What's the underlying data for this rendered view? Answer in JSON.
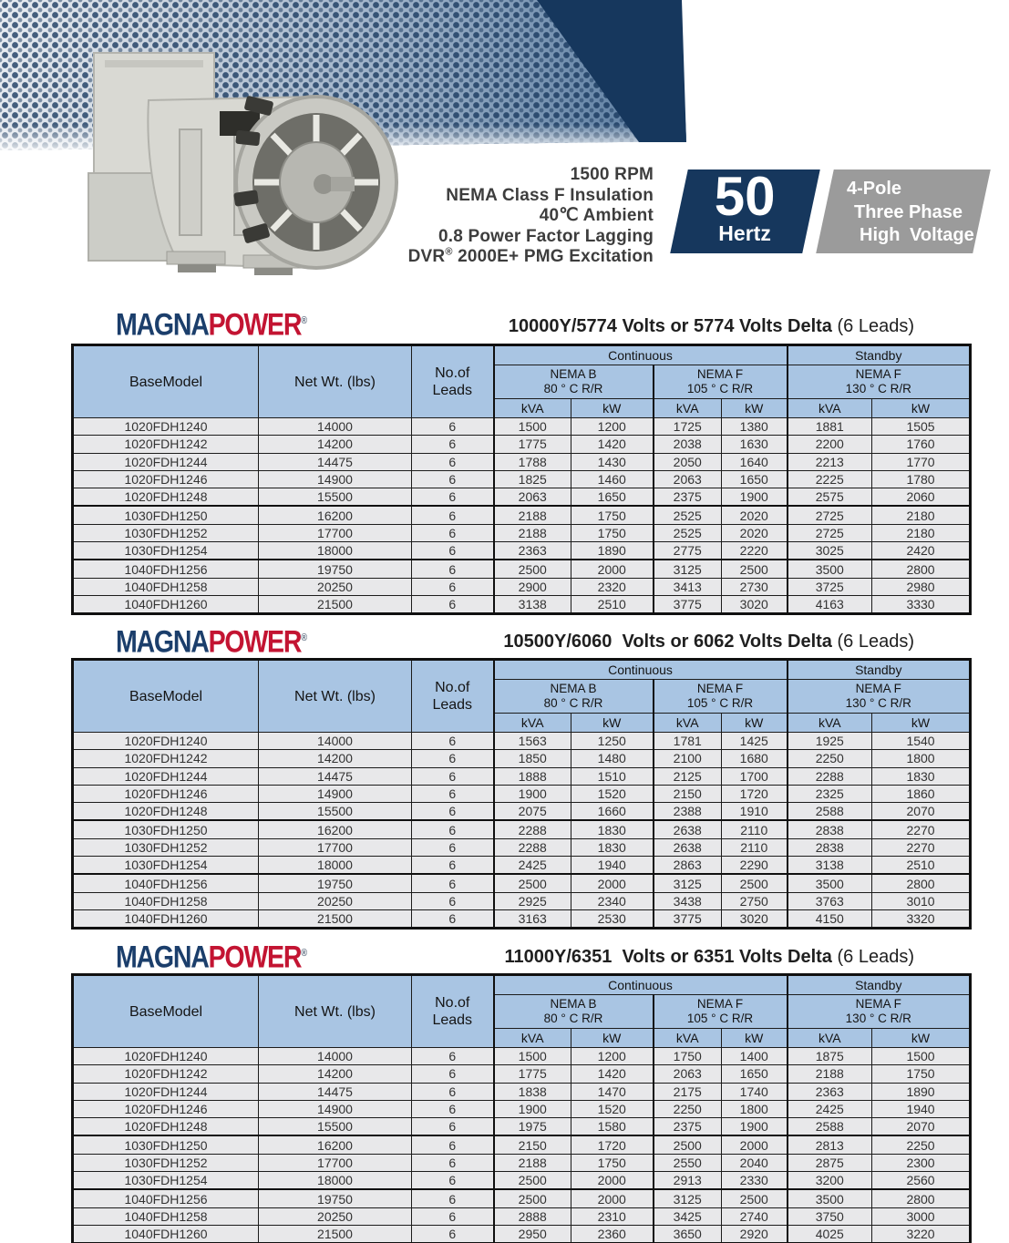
{
  "banner": {
    "spec_lines": [
      "1500 RPM",
      "NEMA Class F Insulation",
      "40℃ Ambient",
      "0.8 Power Factor Lagging"
    ],
    "spec_dvr": {
      "prefix": "DVR",
      "reg": "®",
      "suffix": " 2000E+ PMG Excitation"
    },
    "hertz_badge": {
      "value": "50",
      "label": "Hertz"
    },
    "pole_badge": {
      "line1": "4-Pole",
      "line2": "Three Phase",
      "line3": "High Voltage"
    }
  },
  "logo": {
    "part1": "MAGNA",
    "part2": "POWER",
    "reg": "®"
  },
  "table_header": {
    "col_model": "BaseModel",
    "col_weight": "Net Wt. (lbs)",
    "col_leads_line1": "No.of",
    "col_leads_line2": "Leads",
    "group_continuous": "Continuous",
    "group_standby": "Standby",
    "nema_b_line1": "NEMA B",
    "nema_b_line2": "80 ° C R/R",
    "nema_f105_line1": "NEMA F",
    "nema_f105_line2": "105 ° C R/R",
    "nema_f130_line1": "NEMA F",
    "nema_f130_line2": "130 ° C R/R",
    "unit_kva": "kVA",
    "unit_kw": "kW"
  },
  "tables": [
    {
      "title_bold": "10000Y/5774 Volts or 5774 Volts Delta",
      "title_normal": " (6 Leads)",
      "group_starts": [
        5,
        8
      ],
      "rows": [
        [
          "1020FDH1240",
          "14000",
          "6",
          "1500",
          "1200",
          "1725",
          "1380",
          "1881",
          "1505"
        ],
        [
          "1020FDH1242",
          "14200",
          "6",
          "1775",
          "1420",
          "2038",
          "1630",
          "2200",
          "1760"
        ],
        [
          "1020FDH1244",
          "14475",
          "6",
          "1788",
          "1430",
          "2050",
          "1640",
          "2213",
          "1770"
        ],
        [
          "1020FDH1246",
          "14900",
          "6",
          "1825",
          "1460",
          "2063",
          "1650",
          "2225",
          "1780"
        ],
        [
          "1020FDH1248",
          "15500",
          "6",
          "2063",
          "1650",
          "2375",
          "1900",
          "2575",
          "2060"
        ],
        [
          "1030FDH1250",
          "16200",
          "6",
          "2188",
          "1750",
          "2525",
          "2020",
          "2725",
          "2180"
        ],
        [
          "1030FDH1252",
          "17700",
          "6",
          "2188",
          "1750",
          "2525",
          "2020",
          "2725",
          "2180"
        ],
        [
          "1030FDH1254",
          "18000",
          "6",
          "2363",
          "1890",
          "2775",
          "2220",
          "3025",
          "2420"
        ],
        [
          "1040FDH1256",
          "19750",
          "6",
          "2500",
          "2000",
          "3125",
          "2500",
          "3500",
          "2800"
        ],
        [
          "1040FDH1258",
          "20250",
          "6",
          "2900",
          "2320",
          "3413",
          "2730",
          "3725",
          "2980"
        ],
        [
          "1040FDH1260",
          "21500",
          "6",
          "3138",
          "2510",
          "3775",
          "3020",
          "4163",
          "3330"
        ]
      ]
    },
    {
      "title_bold": "10500Y/6060  Volts or 6062 Volts Delta",
      "title_normal": " (6 Leads)",
      "group_starts": [
        5,
        8
      ],
      "rows": [
        [
          "1020FDH1240",
          "14000",
          "6",
          "1563",
          "1250",
          "1781",
          "1425",
          "1925",
          "1540"
        ],
        [
          "1020FDH1242",
          "14200",
          "6",
          "1850",
          "1480",
          "2100",
          "1680",
          "2250",
          "1800"
        ],
        [
          "1020FDH1244",
          "14475",
          "6",
          "1888",
          "1510",
          "2125",
          "1700",
          "2288",
          "1830"
        ],
        [
          "1020FDH1246",
          "14900",
          "6",
          "1900",
          "1520",
          "2150",
          "1720",
          "2325",
          "1860"
        ],
        [
          "1020FDH1248",
          "15500",
          "6",
          "2075",
          "1660",
          "2388",
          "1910",
          "2588",
          "2070"
        ],
        [
          "1030FDH1250",
          "16200",
          "6",
          "2288",
          "1830",
          "2638",
          "2110",
          "2838",
          "2270"
        ],
        [
          "1030FDH1252",
          "17700",
          "6",
          "2288",
          "1830",
          "2638",
          "2110",
          "2838",
          "2270"
        ],
        [
          "1030FDH1254",
          "18000",
          "6",
          "2425",
          "1940",
          "2863",
          "2290",
          "3138",
          "2510"
        ],
        [
          "1040FDH1256",
          "19750",
          "6",
          "2500",
          "2000",
          "3125",
          "2500",
          "3500",
          "2800"
        ],
        [
          "1040FDH1258",
          "20250",
          "6",
          "2925",
          "2340",
          "3438",
          "2750",
          "3763",
          "3010"
        ],
        [
          "1040FDH1260",
          "21500",
          "6",
          "3163",
          "2530",
          "3775",
          "3020",
          "4150",
          "3320"
        ]
      ]
    },
    {
      "title_bold": "11000Y/6351  Volts or 6351 Volts Delta",
      "title_normal": " (6 Leads)",
      "group_starts": [
        5,
        8
      ],
      "rows": [
        [
          "1020FDH1240",
          "14000",
          "6",
          "1500",
          "1200",
          "1750",
          "1400",
          "1875",
          "1500"
        ],
        [
          "1020FDH1242",
          "14200",
          "6",
          "1775",
          "1420",
          "2063",
          "1650",
          "2188",
          "1750"
        ],
        [
          "1020FDH1244",
          "14475",
          "6",
          "1838",
          "1470",
          "2175",
          "1740",
          "2363",
          "1890"
        ],
        [
          "1020FDH1246",
          "14900",
          "6",
          "1900",
          "1520",
          "2250",
          "1800",
          "2425",
          "1940"
        ],
        [
          "1020FDH1248",
          "15500",
          "6",
          "1975",
          "1580",
          "2375",
          "1900",
          "2588",
          "2070"
        ],
        [
          "1030FDH1250",
          "16200",
          "6",
          "2150",
          "1720",
          "2500",
          "2000",
          "2813",
          "2250"
        ],
        [
          "1030FDH1252",
          "17700",
          "6",
          "2188",
          "1750",
          "2550",
          "2040",
          "2875",
          "2300"
        ],
        [
          "1030FDH1254",
          "18000",
          "6",
          "2500",
          "2000",
          "2913",
          "2330",
          "3200",
          "2560"
        ],
        [
          "1040FDH1256",
          "19750",
          "6",
          "2500",
          "2000",
          "3125",
          "2500",
          "3500",
          "2800"
        ],
        [
          "1040FDH1258",
          "20250",
          "6",
          "2888",
          "2310",
          "3425",
          "2740",
          "3750",
          "3000"
        ],
        [
          "1040FDH1260",
          "21500",
          "6",
          "2950",
          "2360",
          "3650",
          "2920",
          "4025",
          "3220"
        ]
      ]
    }
  ],
  "colors": {
    "navy": "#16375d",
    "badge_gray": "#9b9b9b",
    "header_blue": "#a9c5e3",
    "row_gray": "#e8e8ea",
    "logo_blue": "#1b3e6b",
    "logo_red": "#c31432"
  }
}
